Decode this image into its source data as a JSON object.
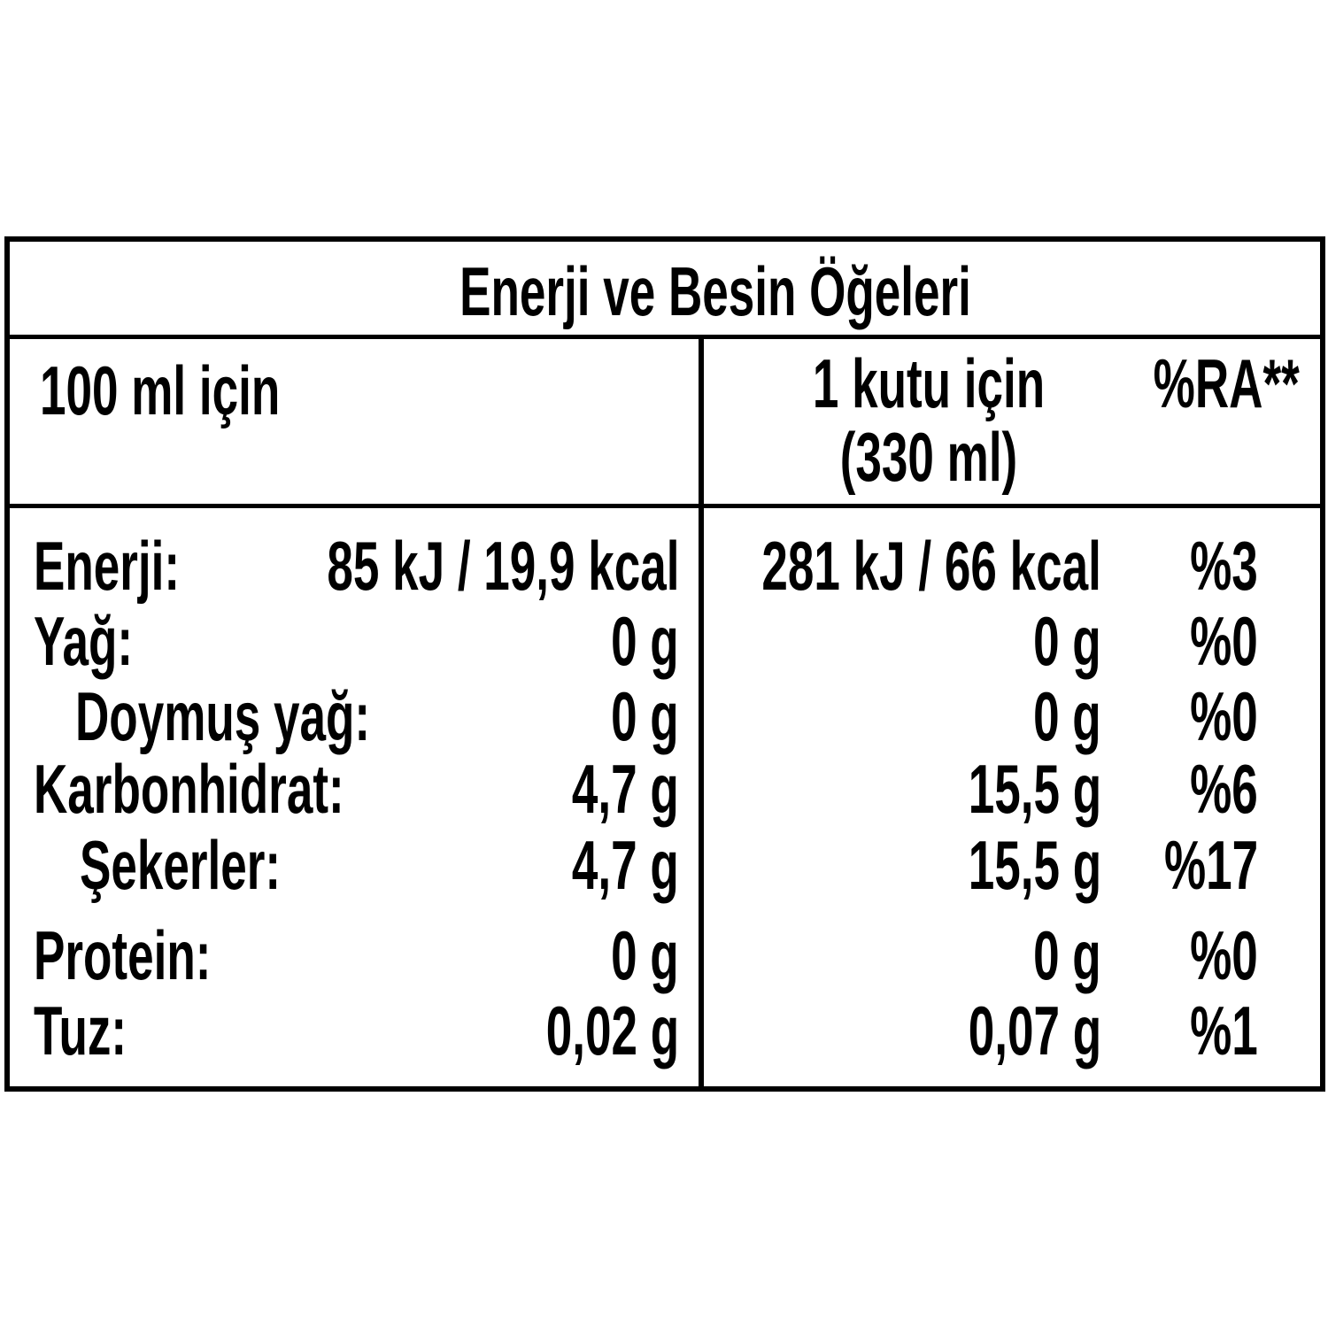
{
  "title": "Enerji ve Besin Öğeleri",
  "header": {
    "col1": "100 ml için",
    "col2_line1": "1 kutu için",
    "col2_line2": "(330 ml)",
    "col3": "%RA**"
  },
  "rows": [
    {
      "label": "Enerji:",
      "per100": "85 kJ / 19,9 kcal",
      "perCan": "281 kJ / 66 kcal",
      "ra": "%3"
    },
    {
      "label": "Yağ:",
      "per100": "0 g",
      "perCan": "0 g",
      "ra": "%0"
    },
    {
      "label": "Doymuş yağ:",
      "per100": "0 g",
      "perCan": "0 g",
      "ra": "%0"
    },
    {
      "label": "Karbonhidrat:",
      "per100": "4,7 g",
      "perCan": "15,5 g",
      "ra": "%6"
    },
    {
      "label": "Şekerler:",
      "per100": "4,7 g",
      "perCan": "15,5 g",
      "ra": "%17"
    },
    {
      "label": "Protein:",
      "per100": "0 g",
      "perCan": "0 g",
      "ra": "%0"
    },
    {
      "label": "Tuz:",
      "per100": "0,02 g",
      "perCan": "0,07 g",
      "ra": "%1"
    }
  ]
}
